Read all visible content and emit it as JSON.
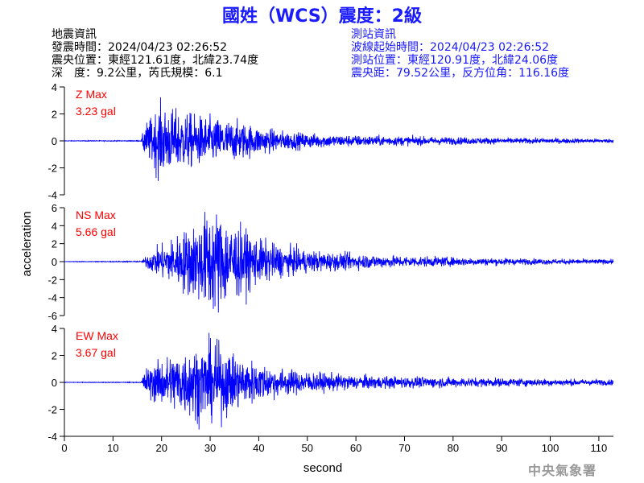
{
  "title": "國姓（WCS）震度：2級",
  "earthquake_info": {
    "heading": "地震資訊",
    "origin_time": "發震時間：2024/04/23 02:26:52",
    "epicenter": "震央位置：東經121.61度，北緯23.74度",
    "depth_magnitude": "深　度：9.2公里，芮氏規模：6.1"
  },
  "station_info": {
    "heading": "測站資訊",
    "wave_start": "波線起始時間：2024/04/23 02:26:52",
    "station_location": "測站位置：東經120.91度，北緯24.06度",
    "distance_azimuth": "震央距：79.52公里，反方位角：116.16度"
  },
  "credit": "中央氣象署",
  "chart_data": {
    "type": "line",
    "xlabel": "second",
    "ylabel": "acceleration",
    "xlim": [
      0,
      113
    ],
    "xticks": [
      0,
      10,
      20,
      30,
      40,
      50,
      60,
      70,
      80,
      90,
      100,
      110
    ],
    "line_color": "#0000ff",
    "label_color": "#ff0000",
    "panels": [
      {
        "component": "Z",
        "label_line1": "Z Max",
        "label_line2": "3.23 gal",
        "max_abs": 3.23,
        "ylim": [
          -4,
          4
        ],
        "yticks": [
          4,
          2,
          0,
          -2,
          -4
        ],
        "envelope": [
          [
            0,
            0.02
          ],
          [
            15.8,
            0.03
          ],
          [
            16.5,
            1.1
          ],
          [
            18,
            1.6
          ],
          [
            19.5,
            2.4
          ],
          [
            21,
            2.2
          ],
          [
            23,
            2.0
          ],
          [
            26,
            1.8
          ],
          [
            29,
            1.6
          ],
          [
            33,
            1.4
          ],
          [
            37,
            1.2
          ],
          [
            40,
            0.9
          ],
          [
            45,
            0.65
          ],
          [
            50,
            0.5
          ],
          [
            56,
            0.4
          ],
          [
            62,
            0.35
          ],
          [
            70,
            0.3
          ],
          [
            80,
            0.25
          ],
          [
            90,
            0.2
          ],
          [
            100,
            0.17
          ],
          [
            113,
            0.13
          ]
        ]
      },
      {
        "component": "NS",
        "label_line1": "NS Max",
        "label_line2": "5.66 gal",
        "max_abs": 5.66,
        "ylim": [
          -6,
          6
        ],
        "yticks": [
          6,
          4,
          2,
          0,
          -2,
          -4,
          -6
        ],
        "envelope": [
          [
            0,
            0.02
          ],
          [
            16,
            0.05
          ],
          [
            17,
            0.6
          ],
          [
            19,
            1.1
          ],
          [
            22,
            1.8
          ],
          [
            25,
            2.6
          ],
          [
            28,
            3.4
          ],
          [
            30,
            4.2
          ],
          [
            32,
            4.0
          ],
          [
            34,
            3.3
          ],
          [
            37,
            2.5
          ],
          [
            40,
            1.8
          ],
          [
            45,
            1.2
          ],
          [
            50,
            0.9
          ],
          [
            56,
            0.7
          ],
          [
            63,
            0.55
          ],
          [
            70,
            0.45
          ],
          [
            80,
            0.35
          ],
          [
            90,
            0.28
          ],
          [
            100,
            0.22
          ],
          [
            113,
            0.18
          ]
        ]
      },
      {
        "component": "EW",
        "label_line1": "EW Max",
        "label_line2": "3.67 gal",
        "max_abs": 3.67,
        "ylim": [
          -4,
          4
        ],
        "yticks": [
          4,
          2,
          0,
          -2,
          -4
        ],
        "envelope": [
          [
            0,
            0.02
          ],
          [
            15.8,
            0.03
          ],
          [
            16.5,
            1.0
          ],
          [
            19,
            1.6
          ],
          [
            22,
            2.2
          ],
          [
            25,
            2.6
          ],
          [
            28,
            2.9
          ],
          [
            31,
            3.0
          ],
          [
            33,
            2.6
          ],
          [
            36,
            2.0
          ],
          [
            40,
            1.5
          ],
          [
            44,
            1.1
          ],
          [
            48,
            0.9
          ],
          [
            54,
            0.7
          ],
          [
            60,
            0.55
          ],
          [
            68,
            0.45
          ],
          [
            76,
            0.4
          ],
          [
            85,
            0.35
          ],
          [
            95,
            0.3
          ],
          [
            105,
            0.25
          ],
          [
            113,
            0.22
          ]
        ]
      }
    ]
  }
}
